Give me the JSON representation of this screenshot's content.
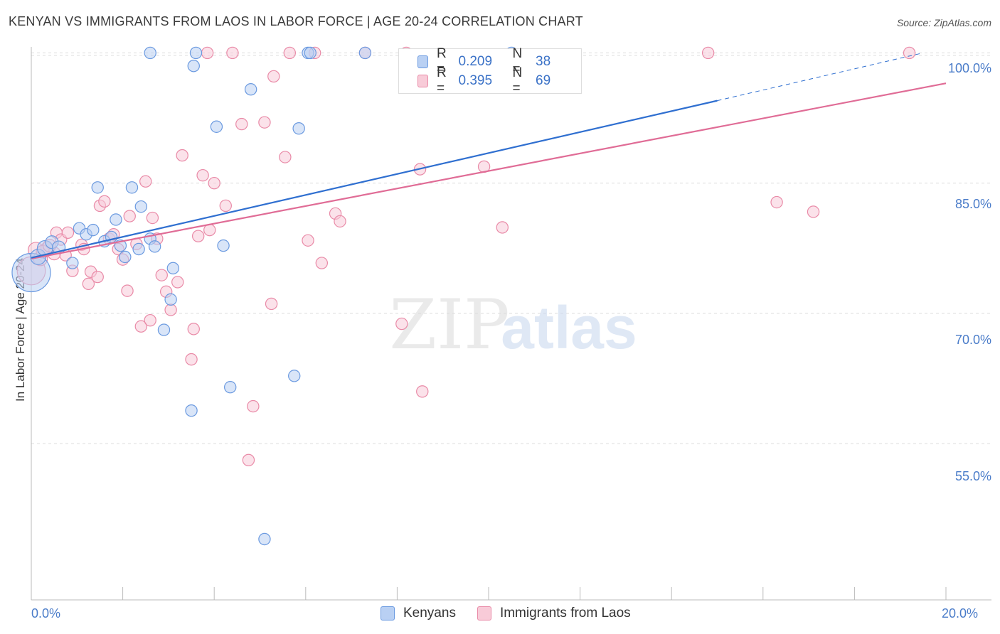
{
  "title": "KENYAN VS IMMIGRANTS FROM LAOS IN LABOR FORCE | AGE 20-24 CORRELATION CHART",
  "source": "Source: ZipAtlas.com",
  "watermark": {
    "part1": "ZIP",
    "part2": "atlas"
  },
  "colors": {
    "blue_fill": "#b9d0f3",
    "blue_stroke": "#6b9ae0",
    "blue_line": "#2f6fd0",
    "pink_fill": "#f8cbd8",
    "pink_stroke": "#e98aa7",
    "pink_line": "#e06c96",
    "tick_label": "#4a7cc9",
    "grid": "#dcdcdc"
  },
  "legend_top": {
    "rows": [
      {
        "r_label": "R =",
        "r_value": "0.209",
        "n_label": "N =",
        "n_value": "38"
      },
      {
        "r_label": "R =",
        "r_value": "0.395",
        "n_label": "N =",
        "n_value": "69"
      }
    ]
  },
  "legend_bottom": {
    "items": [
      "Kenyans",
      "Immigrants from Laos"
    ]
  },
  "chart_data": {
    "type": "scatter",
    "xlabel": "",
    "ylabel": "In Labor Force | Age 20-24",
    "x_unit": "%",
    "xlim": [
      0,
      20
    ],
    "ylim": [
      37,
      102
    ],
    "x_tick_labels": [
      "0.0%",
      "20.0%"
    ],
    "y_ticks": [
      55,
      70,
      85,
      100
    ],
    "y_tick_labels": [
      "55.0%",
      "70.0%",
      "85.0%",
      "100.0%"
    ],
    "grid": "horizontal dashed",
    "legend_position": "top-center",
    "series": [
      {
        "name": "Kenyans",
        "r": 0.209,
        "n": 38,
        "trend": {
          "x0": 0.0,
          "y0": 76.4,
          "x1": 15.0,
          "y1": 94.5,
          "dashed_to_x": 19.5,
          "dashed_to_y": 100.0
        },
        "points": [
          {
            "x": 0.0,
            "y": 74.7,
            "s": 30
          },
          {
            "x": 0.15,
            "y": 76.5,
            "s": 12
          },
          {
            "x": 0.3,
            "y": 77.5,
            "s": 12
          },
          {
            "x": 0.45,
            "y": 78.2,
            "s": 10
          },
          {
            "x": 0.6,
            "y": 77.6,
            "s": 10
          },
          {
            "x": 0.9,
            "y": 75.8,
            "s": 9
          },
          {
            "x": 1.05,
            "y": 79.8,
            "s": 9
          },
          {
            "x": 1.2,
            "y": 79.1,
            "s": 9
          },
          {
            "x": 1.35,
            "y": 79.6,
            "s": 9
          },
          {
            "x": 1.45,
            "y": 84.5,
            "s": 9
          },
          {
            "x": 1.6,
            "y": 78.3,
            "s": 9
          },
          {
            "x": 1.75,
            "y": 78.8,
            "s": 9
          },
          {
            "x": 1.85,
            "y": 80.8,
            "s": 9
          },
          {
            "x": 1.95,
            "y": 77.8,
            "s": 9
          },
          {
            "x": 2.05,
            "y": 76.5,
            "s": 9
          },
          {
            "x": 2.2,
            "y": 84.5,
            "s": 9
          },
          {
            "x": 2.4,
            "y": 82.3,
            "s": 9
          },
          {
            "x": 2.35,
            "y": 77.4,
            "s": 9
          },
          {
            "x": 2.6,
            "y": 78.6,
            "s": 9
          },
          {
            "x": 2.7,
            "y": 77.7,
            "s": 9
          },
          {
            "x": 2.9,
            "y": 68.1,
            "s": 9
          },
          {
            "x": 3.05,
            "y": 71.6,
            "s": 9
          },
          {
            "x": 3.1,
            "y": 75.2,
            "s": 9
          },
          {
            "x": 3.5,
            "y": 58.8,
            "s": 9
          },
          {
            "x": 3.55,
            "y": 98.5,
            "s": 9
          },
          {
            "x": 3.6,
            "y": 100.0,
            "s": 9
          },
          {
            "x": 4.05,
            "y": 91.5,
            "s": 9
          },
          {
            "x": 4.2,
            "y": 77.8,
            "s": 9
          },
          {
            "x": 4.35,
            "y": 61.5,
            "s": 9
          },
          {
            "x": 4.8,
            "y": 95.8,
            "s": 9
          },
          {
            "x": 5.1,
            "y": 44.0,
            "s": 9
          },
          {
            "x": 5.75,
            "y": 62.8,
            "s": 9
          },
          {
            "x": 5.85,
            "y": 91.3,
            "s": 9
          },
          {
            "x": 6.05,
            "y": 100.0,
            "s": 9
          },
          {
            "x": 2.6,
            "y": 100.0,
            "s": 9
          },
          {
            "x": 6.1,
            "y": 100.0,
            "s": 9
          },
          {
            "x": 7.3,
            "y": 100.0,
            "s": 9
          },
          {
            "x": 10.5,
            "y": 100.0,
            "s": 9
          }
        ]
      },
      {
        "name": "Immigrants from Laos",
        "r": 0.395,
        "n": 69,
        "trend": {
          "x0": 0.0,
          "y0": 76.3,
          "x1": 20.0,
          "y1": 96.5
        },
        "points": [
          {
            "x": 0.0,
            "y": 74.9,
            "s": 22
          },
          {
            "x": 0.1,
            "y": 77.3,
            "s": 12
          },
          {
            "x": 0.2,
            "y": 76.3,
            "s": 11
          },
          {
            "x": 0.35,
            "y": 77.5,
            "s": 10
          },
          {
            "x": 0.5,
            "y": 76.9,
            "s": 10
          },
          {
            "x": 0.55,
            "y": 79.3,
            "s": 9
          },
          {
            "x": 0.65,
            "y": 78.5,
            "s": 9
          },
          {
            "x": 0.75,
            "y": 76.7,
            "s": 9
          },
          {
            "x": 0.8,
            "y": 79.3,
            "s": 9
          },
          {
            "x": 0.9,
            "y": 74.9,
            "s": 9
          },
          {
            "x": 1.1,
            "y": 77.9,
            "s": 9
          },
          {
            "x": 1.15,
            "y": 77.4,
            "s": 9
          },
          {
            "x": 1.25,
            "y": 73.4,
            "s": 9
          },
          {
            "x": 1.3,
            "y": 74.8,
            "s": 9
          },
          {
            "x": 1.45,
            "y": 74.2,
            "s": 9
          },
          {
            "x": 1.5,
            "y": 82.4,
            "s": 9
          },
          {
            "x": 1.6,
            "y": 82.9,
            "s": 9
          },
          {
            "x": 1.7,
            "y": 78.6,
            "s": 9
          },
          {
            "x": 1.8,
            "y": 79.1,
            "s": 9
          },
          {
            "x": 1.9,
            "y": 77.4,
            "s": 9
          },
          {
            "x": 2.0,
            "y": 76.2,
            "s": 9
          },
          {
            "x": 2.1,
            "y": 72.6,
            "s": 9
          },
          {
            "x": 2.15,
            "y": 81.2,
            "s": 9
          },
          {
            "x": 2.3,
            "y": 78.0,
            "s": 9
          },
          {
            "x": 2.4,
            "y": 68.5,
            "s": 9
          },
          {
            "x": 2.5,
            "y": 85.2,
            "s": 9
          },
          {
            "x": 2.6,
            "y": 69.2,
            "s": 9
          },
          {
            "x": 2.65,
            "y": 81.0,
            "s": 9
          },
          {
            "x": 2.75,
            "y": 78.6,
            "s": 9
          },
          {
            "x": 2.85,
            "y": 74.4,
            "s": 9
          },
          {
            "x": 2.95,
            "y": 72.5,
            "s": 9
          },
          {
            "x": 3.05,
            "y": 70.4,
            "s": 9
          },
          {
            "x": 3.2,
            "y": 73.6,
            "s": 9
          },
          {
            "x": 3.3,
            "y": 88.2,
            "s": 9
          },
          {
            "x": 3.5,
            "y": 64.7,
            "s": 9
          },
          {
            "x": 3.55,
            "y": 68.2,
            "s": 9
          },
          {
            "x": 3.65,
            "y": 78.9,
            "s": 9
          },
          {
            "x": 3.75,
            "y": 85.9,
            "s": 9
          },
          {
            "x": 3.85,
            "y": 100.0,
            "s": 9
          },
          {
            "x": 3.9,
            "y": 79.6,
            "s": 9
          },
          {
            "x": 4.0,
            "y": 85.0,
            "s": 9
          },
          {
            "x": 4.25,
            "y": 82.4,
            "s": 9
          },
          {
            "x": 4.4,
            "y": 100.0,
            "s": 9
          },
          {
            "x": 4.6,
            "y": 91.8,
            "s": 9
          },
          {
            "x": 4.75,
            "y": 53.1,
            "s": 9
          },
          {
            "x": 4.85,
            "y": 59.3,
            "s": 9
          },
          {
            "x": 5.1,
            "y": 92.0,
            "s": 9
          },
          {
            "x": 5.25,
            "y": 71.1,
            "s": 9
          },
          {
            "x": 5.3,
            "y": 97.3,
            "s": 9
          },
          {
            "x": 5.55,
            "y": 88.0,
            "s": 9
          },
          {
            "x": 5.65,
            "y": 100.0,
            "s": 9
          },
          {
            "x": 6.05,
            "y": 78.4,
            "s": 9
          },
          {
            "x": 6.2,
            "y": 100.0,
            "s": 9
          },
          {
            "x": 6.35,
            "y": 75.8,
            "s": 9
          },
          {
            "x": 6.65,
            "y": 81.5,
            "s": 9
          },
          {
            "x": 6.75,
            "y": 80.6,
            "s": 9
          },
          {
            "x": 7.3,
            "y": 100.0,
            "s": 9
          },
          {
            "x": 8.1,
            "y": 68.8,
            "s": 9
          },
          {
            "x": 8.2,
            "y": 100.0,
            "s": 9
          },
          {
            "x": 8.5,
            "y": 86.6,
            "s": 9
          },
          {
            "x": 8.55,
            "y": 61.0,
            "s": 9
          },
          {
            "x": 9.9,
            "y": 86.9,
            "s": 9
          },
          {
            "x": 10.3,
            "y": 79.9,
            "s": 9
          },
          {
            "x": 14.8,
            "y": 100.0,
            "s": 9
          },
          {
            "x": 16.3,
            "y": 82.8,
            "s": 9
          },
          {
            "x": 17.1,
            "y": 81.7,
            "s": 9
          },
          {
            "x": 19.2,
            "y": 100.0,
            "s": 9
          },
          {
            "x": 0.25,
            "y": 77.1,
            "s": 10
          },
          {
            "x": 0.4,
            "y": 77.8,
            "s": 10
          }
        ]
      }
    ]
  }
}
